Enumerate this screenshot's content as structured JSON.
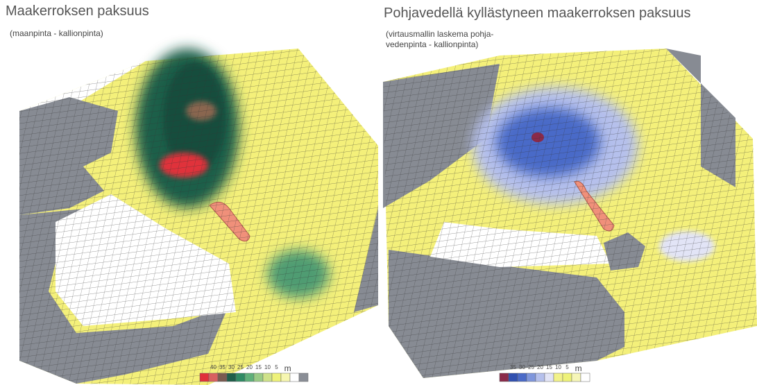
{
  "panels": [
    {
      "title": "Maakerroksen paksuus",
      "subtitle": [
        "(maanpinta - kallionpinta)"
      ],
      "legend": {
        "labels": [
          40,
          35,
          30,
          25,
          20,
          15,
          10,
          5
        ],
        "unit": "m",
        "colors": [
          "#e0303a",
          "#d86060",
          "#7a5a50",
          "#1f5e4a",
          "#2f8a64",
          "#5fb07a",
          "#9acb86",
          "#cfe28a",
          "#eef27a",
          "#f6f6b0",
          "#ffffff",
          "#8a8e96"
        ]
      }
    },
    {
      "title": "Pohjavedellä kyllästyneen maakerroksen paksuus",
      "subtitle": [
        "(virtausmallin laskema pohja-",
        "vedenpinta - kallionpinta)"
      ],
      "legend": {
        "labels": [
          35,
          30,
          25,
          20,
          15,
          10,
          5
        ],
        "unit": "m",
        "colors": [
          "#8a2a4a",
          "#3050b0",
          "#4a6ac8",
          "#7f96dc",
          "#b5c0ec",
          "#e2e4f6",
          "#f2f28a",
          "#eef27a",
          "#f6f6b8",
          "#ffffff"
        ]
      }
    }
  ]
}
